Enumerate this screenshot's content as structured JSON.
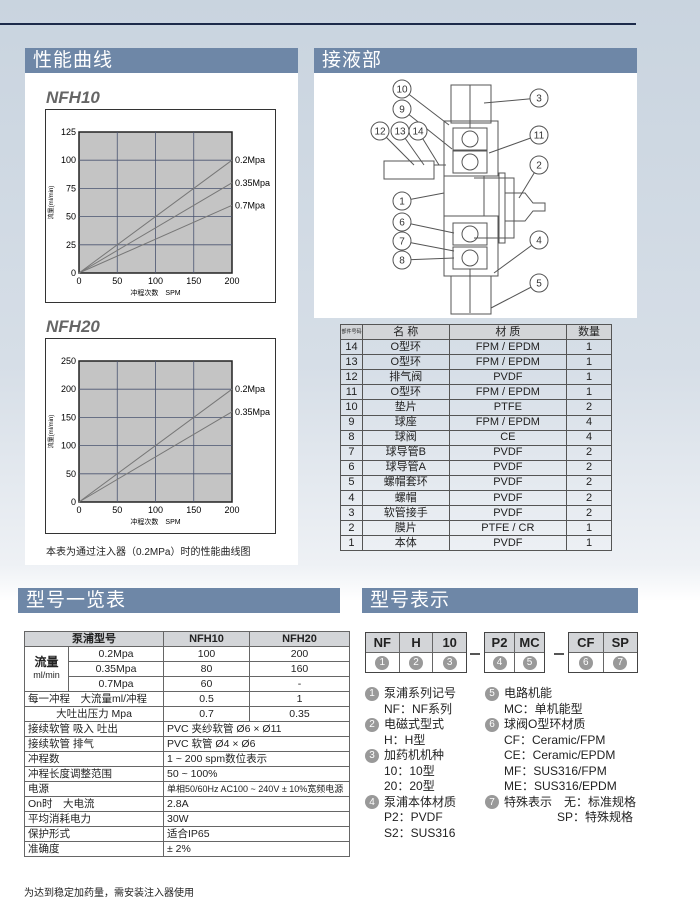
{
  "headers": {
    "performance": "性能曲线",
    "wetted_parts": "接液部",
    "model_list": "型号一览表",
    "model_code": "型号表示"
  },
  "charts": [
    {
      "title": "NFH10",
      "type": "line",
      "xlabel": "冲程次数　SPM",
      "ylabel": "流量(ml/min)",
      "xlim": [
        0,
        200
      ],
      "ylim": [
        0,
        125
      ],
      "xticks": [
        "0",
        "50",
        "100",
        "150",
        "200"
      ],
      "yticks": [
        "0",
        "25",
        "50",
        "75",
        "100",
        "125"
      ],
      "grid": true,
      "series": [
        {
          "name": "0.2Mpa",
          "x": [
            0,
            200
          ],
          "y": [
            0,
            100
          ]
        },
        {
          "name": "0.35Mpa",
          "x": [
            0,
            200
          ],
          "y": [
            0,
            80
          ]
        },
        {
          "name": "0.7Mpa",
          "x": [
            0,
            200
          ],
          "y": [
            0,
            60
          ]
        }
      ]
    },
    {
      "title": "NFH20",
      "type": "line",
      "xlabel": "冲程次数　SPM",
      "ylabel": "流量(ml/min)",
      "xlim": [
        0,
        200
      ],
      "ylim": [
        0,
        250
      ],
      "xticks": [
        "0",
        "50",
        "100",
        "150",
        "200"
      ],
      "yticks": [
        "0",
        "50",
        "100",
        "150",
        "200",
        "250"
      ],
      "grid": true,
      "series": [
        {
          "name": "0.2Mpa",
          "x": [
            0,
            200
          ],
          "y": [
            0,
            200
          ]
        },
        {
          "name": "0.35Mpa",
          "x": [
            0,
            200
          ],
          "y": [
            0,
            160
          ]
        }
      ]
    }
  ],
  "chart_caption": "本表为通过注入器（0.2MPa）时的性能曲线图",
  "diagram_callouts": [
    "1",
    "2",
    "3",
    "4",
    "5",
    "6",
    "7",
    "8",
    "9",
    "10",
    "11",
    "12",
    "13",
    "14"
  ],
  "parts_table": {
    "headers": [
      "部件号码",
      "名 称",
      "材 质",
      "数量"
    ],
    "rows": [
      [
        "14",
        "O型环",
        "FPM / EPDM",
        "1"
      ],
      [
        "13",
        "O型环",
        "FPM / EPDM",
        "1"
      ],
      [
        "12",
        "排气阀",
        "PVDF",
        "1"
      ],
      [
        "11",
        "O型环",
        "FPM / EPDM",
        "1"
      ],
      [
        "10",
        "垫片",
        "PTFE",
        "2"
      ],
      [
        "9",
        "球座",
        "FPM / EPDM",
        "4"
      ],
      [
        "8",
        "球阀",
        "CE",
        "4"
      ],
      [
        "7",
        "球导管B",
        "PVDF",
        "2"
      ],
      [
        "6",
        "球导管A",
        "PVDF",
        "2"
      ],
      [
        "5",
        "螺帽套环",
        "PVDF",
        "2"
      ],
      [
        "4",
        "螺帽",
        "PVDF",
        "2"
      ],
      [
        "3",
        "软管接手",
        "PVDF",
        "2"
      ],
      [
        "2",
        "膜片",
        "PTFE / CR",
        "1"
      ],
      [
        "1",
        "本体",
        "PVDF",
        "1"
      ]
    ]
  },
  "spec_table": {
    "header": [
      "泵浦型号",
      "NFH10",
      "NFH20"
    ],
    "flow_label": "流量",
    "flow_unit": "ml/min",
    "flow_rows": [
      [
        "0.2Mpa",
        "100",
        "200"
      ],
      [
        "0.35Mpa",
        "80",
        "160"
      ],
      [
        "0.7Mpa",
        "60",
        "-"
      ]
    ],
    "rows2": [
      [
        "每一冲程　大流量ml/冲程",
        "0.5",
        "1"
      ],
      [
        "大吐出压力 Mpa",
        "0.7",
        "0.35"
      ]
    ],
    "rows": [
      [
        "接续软管 吸入 吐出",
        "PVC 夹纱软管 Ø6 × Ø11"
      ],
      [
        "接续软管 排气",
        "PVC 软管 Ø4 × Ø6"
      ],
      [
        "冲程数",
        "1 ~ 200 spm数位表示"
      ],
      [
        "冲程长度调整范围",
        "50 ~ 100%"
      ],
      [
        "电源",
        "单相50/60Hz AC100 ~ 240V ± 10%宽频电源"
      ],
      [
        "On时　大电流",
        "2.8A"
      ],
      [
        "平均消耗电力",
        "30W"
      ],
      [
        "保护形式",
        "适合IP65"
      ],
      [
        "准确度",
        "± 2%"
      ]
    ]
  },
  "spec_note": "为达到稳定加药量，需安装注入器使用",
  "model_code": {
    "groups": [
      [
        [
          "NF",
          "1"
        ],
        [
          "H",
          "2"
        ],
        [
          "10",
          "3"
        ]
      ],
      [
        [
          "P2",
          "4"
        ],
        [
          "MC",
          "5"
        ]
      ],
      [
        [
          "CF",
          "6"
        ],
        [
          "SP",
          "7"
        ]
      ]
    ]
  },
  "legend_left": [
    {
      "n": "1",
      "title": "泵浦系列记号",
      "lines": [
        "NF：NF系列"
      ]
    },
    {
      "n": "2",
      "title": "电磁式型式",
      "lines": [
        "H：H型"
      ]
    },
    {
      "n": "3",
      "title": "加药机机种",
      "lines": [
        "10：10型",
        "20：20型"
      ]
    },
    {
      "n": "4",
      "title": "泵浦本体材质",
      "lines": [
        "P2：PVDF",
        "S2：SUS316"
      ]
    }
  ],
  "legend_right": [
    {
      "n": "5",
      "title": "电路机能",
      "lines": [
        "MC：单机能型"
      ]
    },
    {
      "n": "6",
      "title": "球阀O型环材质",
      "lines": [
        "CF：Ceramic/FPM",
        "CE：Ceramic/EPDM",
        "MF：SUS316/FPM",
        "ME：SUS316/EPDM"
      ]
    },
    {
      "n": "7",
      "title": "特殊表示　无：标准规格",
      "lines": [
        "SP：特殊规格"
      ]
    }
  ],
  "colors": {
    "header_bg": "#6e87a7",
    "plot_bg": "#c4c4c4",
    "table_header_bg": "#d3d5d8",
    "top_rule": "#1c2a4a"
  }
}
